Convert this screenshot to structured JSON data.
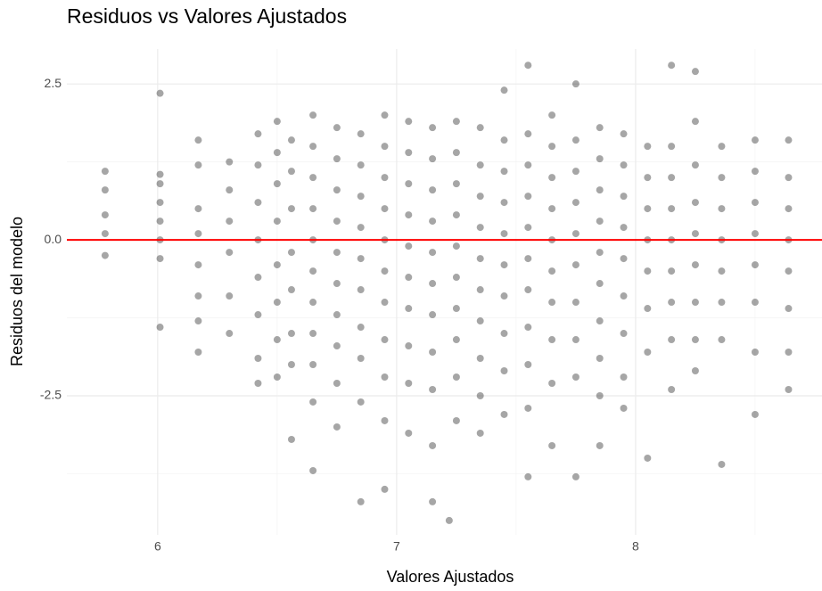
{
  "chart_data": {
    "type": "scatter",
    "title": "Residuos vs Valores Ajustados",
    "x_label": "Valores Ajustados",
    "y_label": "Residuos del modelo",
    "xlim": [
      5.62,
      8.78
    ],
    "ylim": [
      -4.73,
      3.06
    ],
    "xticks": [
      6,
      7,
      8
    ],
    "yticks": [
      -2.5,
      {
        "value": 0,
        "label": "0.0"
      },
      2.5
    ],
    "x_minor": [
      6.5,
      7.5,
      8.5
    ],
    "y_minor": [
      -3.75,
      -1.25,
      1.25
    ],
    "grid": true,
    "color": "#000000",
    "hline": 0,
    "hline_color": "#ff0000",
    "x": [
      5.78,
      5.78,
      5.78,
      5.78,
      5.78,
      6.01,
      6.01,
      6.01,
      6.01,
      6.01,
      6.01,
      6.01,
      6.01,
      6.17,
      6.17,
      6.17,
      6.17,
      6.17,
      6.17,
      6.17,
      6.17,
      6.3,
      6.3,
      6.3,
      6.3,
      6.3,
      6.3,
      6.42,
      6.42,
      6.42,
      6.42,
      6.42,
      6.42,
      6.42,
      6.42,
      6.5,
      6.5,
      6.5,
      6.5,
      6.5,
      6.5,
      6.5,
      6.5,
      6.56,
      6.56,
      6.56,
      6.56,
      6.56,
      6.56,
      6.56,
      6.56,
      6.65,
      6.65,
      6.65,
      6.65,
      6.65,
      6.65,
      6.65,
      6.65,
      6.65,
      6.65,
      6.65,
      6.75,
      6.75,
      6.75,
      6.75,
      6.75,
      6.75,
      6.75,
      6.75,
      6.75,
      6.75,
      6.85,
      6.85,
      6.85,
      6.85,
      6.85,
      6.85,
      6.85,
      6.85,
      6.85,
      6.85,
      6.95,
      6.95,
      6.95,
      6.95,
      6.95,
      6.95,
      6.95,
      6.95,
      6.95,
      6.95,
      6.95,
      7.05,
      7.05,
      7.05,
      7.05,
      7.05,
      7.05,
      7.05,
      7.05,
      7.05,
      7.05,
      7.15,
      7.15,
      7.15,
      7.15,
      7.15,
      7.15,
      7.15,
      7.15,
      7.15,
      7.15,
      7.15,
      7.22,
      7.25,
      7.25,
      7.25,
      7.25,
      7.25,
      7.25,
      7.25,
      7.25,
      7.25,
      7.25,
      7.35,
      7.35,
      7.35,
      7.35,
      7.35,
      7.35,
      7.35,
      7.35,
      7.35,
      7.35,
      7.45,
      7.45,
      7.45,
      7.45,
      7.45,
      7.45,
      7.45,
      7.45,
      7.45,
      7.45,
      7.55,
      7.55,
      7.55,
      7.55,
      7.55,
      7.55,
      7.55,
      7.55,
      7.55,
      7.55,
      7.55,
      7.65,
      7.65,
      7.65,
      7.65,
      7.65,
      7.65,
      7.65,
      7.65,
      7.65,
      7.65,
      7.75,
      7.75,
      7.75,
      7.75,
      7.75,
      7.75,
      7.75,
      7.75,
      7.75,
      7.75,
      7.85,
      7.85,
      7.85,
      7.85,
      7.85,
      7.85,
      7.85,
      7.85,
      7.85,
      7.85,
      7.95,
      7.95,
      7.95,
      7.95,
      7.95,
      7.95,
      7.95,
      7.95,
      7.95,
      8.05,
      8.05,
      8.05,
      8.05,
      8.05,
      8.05,
      8.05,
      8.05,
      8.15,
      8.15,
      8.15,
      8.15,
      8.15,
      8.15,
      8.15,
      8.15,
      8.15,
      8.25,
      8.25,
      8.25,
      8.25,
      8.25,
      8.25,
      8.25,
      8.25,
      8.25,
      8.36,
      8.36,
      8.36,
      8.36,
      8.36,
      8.36,
      8.36,
      8.36,
      8.5,
      8.5,
      8.5,
      8.5,
      8.5,
      8.5,
      8.5,
      8.5,
      8.64,
      8.64,
      8.64,
      8.64,
      8.64,
      8.64,
      8.64,
      8.64
    ],
    "y": [
      1.1,
      0.8,
      0.4,
      0.1,
      -0.25,
      2.35,
      1.05,
      0.9,
      0.6,
      0.3,
      0.0,
      -0.3,
      -1.4,
      1.6,
      1.2,
      0.5,
      0.1,
      -0.4,
      -0.9,
      -1.3,
      -1.8,
      1.25,
      0.8,
      0.3,
      -0.2,
      -0.9,
      -1.5,
      1.7,
      1.2,
      0.6,
      0.0,
      -0.6,
      -1.2,
      -1.9,
      -2.3,
      1.9,
      1.4,
      0.9,
      0.3,
      -0.4,
      -1.0,
      -1.6,
      -2.2,
      1.6,
      1.1,
      0.5,
      -0.2,
      -0.8,
      -1.5,
      -2.0,
      -3.2,
      2.0,
      1.5,
      1.0,
      0.5,
      0.0,
      -0.5,
      -1.0,
      -1.5,
      -2.0,
      -2.6,
      -3.7,
      1.8,
      1.3,
      0.8,
      0.3,
      -0.2,
      -0.7,
      -1.2,
      -1.7,
      -2.3,
      -3.0,
      1.7,
      1.2,
      0.7,
      0.2,
      -0.3,
      -0.8,
      -1.4,
      -1.9,
      -2.6,
      -4.2,
      2.0,
      1.5,
      1.0,
      0.5,
      0.0,
      -0.5,
      -1.0,
      -1.6,
      -2.2,
      -2.9,
      -4.0,
      1.9,
      1.4,
      0.9,
      0.4,
      -0.1,
      -0.6,
      -1.1,
      -1.7,
      -2.3,
      -3.1,
      1.8,
      1.3,
      0.8,
      0.3,
      -0.2,
      -0.7,
      -1.2,
      -1.8,
      -2.4,
      -3.3,
      -4.2,
      -4.5,
      1.9,
      1.4,
      0.9,
      0.4,
      -0.1,
      -0.6,
      -1.1,
      -1.6,
      -2.2,
      -2.9,
      1.8,
      1.2,
      0.7,
      0.2,
      -0.3,
      -0.8,
      -1.3,
      -1.9,
      -2.5,
      -3.1,
      2.4,
      1.6,
      1.1,
      0.6,
      0.1,
      -0.4,
      -0.9,
      -1.5,
      -2.1,
      -2.8,
      2.8,
      1.7,
      1.2,
      0.7,
      0.2,
      -0.3,
      -0.8,
      -1.4,
      -2.0,
      -2.7,
      -3.8,
      2.0,
      1.5,
      1.0,
      0.5,
      0.0,
      -0.5,
      -1.0,
      -1.6,
      -2.3,
      -3.3,
      2.5,
      1.6,
      1.1,
      0.6,
      0.1,
      -0.4,
      -1.0,
      -1.6,
      -2.2,
      -3.8,
      1.8,
      1.3,
      0.8,
      0.3,
      -0.2,
      -0.7,
      -1.3,
      -1.9,
      -2.5,
      -3.3,
      1.7,
      1.2,
      0.7,
      0.2,
      -0.3,
      -0.9,
      -1.5,
      -2.2,
      -2.7,
      1.5,
      1.0,
      0.5,
      0.0,
      -0.5,
      -1.1,
      -1.8,
      -3.5,
      2.8,
      1.5,
      1.0,
      0.5,
      0.0,
      -0.5,
      -1.0,
      -1.6,
      -2.4,
      2.7,
      1.9,
      1.2,
      0.6,
      0.1,
      -0.4,
      -1.0,
      -1.6,
      -2.1,
      1.5,
      1.0,
      0.5,
      0.0,
      -0.5,
      -1.0,
      -1.6,
      -3.6,
      1.6,
      1.1,
      0.6,
      0.1,
      -0.4,
      -1.0,
      -1.8,
      -2.8,
      1.6,
      1.0,
      0.5,
      0.0,
      -0.5,
      -1.1,
      -1.8,
      -2.4
    ]
  }
}
